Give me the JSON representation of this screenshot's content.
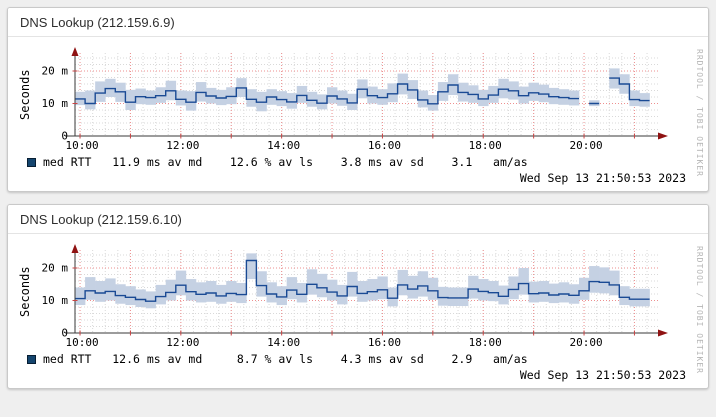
{
  "watermark": "RRDTOOL / TOBI OETIKER",
  "colors": {
    "page_bg": "#efefef",
    "median_line": "#1a4a94",
    "smoke_band": "#c5d1e3",
    "major_grid": "#ee8f8f",
    "minor_grid": "#d9d9d9",
    "arrow": "#8f1212",
    "legend_swatch": "#14456e"
  },
  "chart_data": [
    {
      "type": "line",
      "title": "DNS Lookup (212.159.6.9)",
      "ylabel": "Seconds",
      "ylim_ms": [
        0,
        25.5
      ],
      "x_range": "10:00 to ~21:30",
      "sample_step_hours": 0.2,
      "grid": "red dotted major (hourly, 10m/20m), gray dotted minor",
      "y_ticks": [
        {
          "label": "20 m",
          "ms": 20
        },
        {
          "label": "10 m",
          "ms": 10
        },
        {
          "label": "0",
          "ms": 0
        }
      ],
      "x_ticks": [
        {
          "label": "10:00",
          "t": 0.1
        },
        {
          "label": "12:00",
          "t": 2.1
        },
        {
          "label": "14:00",
          "t": 4.1
        },
        {
          "label": "16:00",
          "t": 6.1
        },
        {
          "label": "18:00",
          "t": 8.1
        },
        {
          "label": "20:00",
          "t": 10.1
        }
      ],
      "series": [
        {
          "name": "median RTT (ms)",
          "values": [
            11.4,
            10.0,
            13.2,
            14.6,
            13.6,
            10.4,
            12.1,
            11.8,
            12.4,
            13.9,
            11.3,
            10.4,
            13.4,
            12.3,
            11.7,
            12.2,
            14.8,
            11.3,
            10.4,
            12.0,
            11.2,
            10.5,
            12.5,
            11.0,
            10.1,
            12.3,
            11.4,
            10.2,
            14.4,
            12.4,
            11.8,
            13.0,
            16.0,
            14.2,
            11.1,
            9.9,
            13.6,
            15.7,
            13.4,
            12.8,
            11.4,
            12.6,
            14.4,
            13.9,
            12.4,
            13.3,
            12.9,
            12.1,
            11.8,
            11.5,
            null,
            10.0,
            null,
            17.8,
            16.0,
            11.2,
            10.9,
            null
          ]
        },
        {
          "name": "smoke low (ms)",
          "values": [
            9.5,
            8.2,
            10.5,
            12.0,
            10.5,
            8.0,
            9.8,
            9.6,
            10.2,
            11.0,
            9.4,
            7.8,
            10.6,
            10.0,
            9.5,
            9.8,
            12.0,
            9.0,
            7.6,
            9.6,
            9.2,
            8.4,
            10.2,
            9.0,
            8.2,
            10.0,
            9.3,
            8.0,
            11.6,
            10.0,
            9.6,
            10.4,
            12.8,
            11.4,
            8.8,
            7.8,
            10.8,
            12.6,
            10.6,
            10.2,
            9.2,
            10.2,
            11.6,
            11.2,
            10.0,
            10.8,
            10.4,
            9.8,
            9.6,
            9.4,
            null,
            9.2,
            null,
            14.6,
            13.0,
            9.2,
            9.0,
            null
          ]
        },
        {
          "name": "smoke high (ms)",
          "values": [
            13.6,
            14.0,
            16.8,
            17.6,
            16.4,
            14.2,
            14.6,
            14.0,
            15.0,
            17.0,
            14.0,
            13.8,
            16.6,
            14.8,
            14.2,
            15.0,
            17.8,
            14.4,
            13.6,
            14.4,
            13.8,
            13.2,
            15.4,
            13.6,
            12.8,
            15.0,
            14.0,
            13.0,
            17.4,
            15.2,
            14.4,
            16.2,
            19.2,
            17.2,
            14.0,
            12.6,
            16.6,
            19.0,
            16.4,
            15.6,
            14.2,
            15.4,
            17.6,
            16.8,
            15.2,
            16.4,
            15.8,
            14.8,
            14.4,
            14.0,
            null,
            11.0,
            null,
            20.8,
            19.0,
            14.0,
            13.2,
            null
          ]
        }
      ],
      "legend": "med RTT   11.9 ms av md    12.6 % av ls    3.8 ms av sd    3.1   am/as",
      "stats": {
        "avg_median_ms": 11.9,
        "avg_loss_pct": 12.6,
        "avg_sd_ms": 3.8,
        "am_as": 3.1
      },
      "timestamp": "Wed Sep 13 21:50:53 2023"
    },
    {
      "type": "line",
      "title": "DNS Lookup (212.159.6.10)",
      "ylabel": "Seconds",
      "ylim_ms": [
        0,
        25.5
      ],
      "x_range": "10:00 to ~21:30",
      "sample_step_hours": 0.2,
      "grid": "red dotted major (hourly, 10m/20m), gray dotted minor",
      "y_ticks": [
        {
          "label": "20 m",
          "ms": 20
        },
        {
          "label": "10 m",
          "ms": 10
        },
        {
          "label": "0",
          "ms": 0
        }
      ],
      "x_ticks": [
        {
          "label": "10:00",
          "t": 0.1
        },
        {
          "label": "12:00",
          "t": 2.1
        },
        {
          "label": "14:00",
          "t": 4.1
        },
        {
          "label": "16:00",
          "t": 6.1
        },
        {
          "label": "18:00",
          "t": 8.1
        },
        {
          "label": "20:00",
          "t": 10.1
        }
      ],
      "series": [
        {
          "name": "median RTT (ms)",
          "values": [
            10.6,
            13.0,
            12.3,
            12.8,
            11.5,
            11.0,
            10.3,
            9.8,
            11.2,
            12.5,
            14.7,
            12.7,
            11.9,
            12.3,
            11.4,
            12.2,
            11.8,
            22.3,
            14.6,
            12.0,
            11.1,
            13.2,
            11.9,
            15.0,
            13.9,
            12.6,
            11.4,
            14.3,
            12.2,
            12.7,
            13.3,
            10.7,
            14.8,
            13.5,
            14.5,
            13.0,
            10.9,
            10.8,
            10.8,
            13.5,
            12.8,
            12.4,
            11.3,
            13.4,
            15.2,
            12.1,
            12.3,
            11.7,
            12.0,
            11.6,
            13.0,
            15.8,
            15.6,
            14.8,
            11.0,
            10.4,
            10.4,
            null
          ]
        },
        {
          "name": "smoke low (ms)",
          "values": [
            8.6,
            10.2,
            9.6,
            10.0,
            9.0,
            8.6,
            8.0,
            7.6,
            8.8,
            10.0,
            11.6,
            10.0,
            9.4,
            9.6,
            9.0,
            9.6,
            9.2,
            16.6,
            11.2,
            9.4,
            8.6,
            10.4,
            9.4,
            11.8,
            11.0,
            10.0,
            8.8,
            11.2,
            9.6,
            10.0,
            10.4,
            8.2,
            11.6,
            10.6,
            11.2,
            10.2,
            8.4,
            8.3,
            8.3,
            10.6,
            10.0,
            9.8,
            8.8,
            10.4,
            11.8,
            9.4,
            9.6,
            9.2,
            9.4,
            9.0,
            10.2,
            12.4,
            12.2,
            11.6,
            8.6,
            8.2,
            8.2,
            null
          ]
        },
        {
          "name": "smoke high (ms)",
          "values": [
            14.0,
            17.2,
            16.0,
            16.8,
            15.0,
            14.4,
            13.4,
            12.8,
            14.8,
            16.4,
            19.2,
            16.6,
            15.6,
            16.0,
            14.8,
            16.0,
            15.4,
            24.5,
            19.0,
            15.6,
            14.4,
            17.2,
            15.4,
            19.6,
            18.2,
            16.4,
            14.8,
            18.8,
            16.0,
            16.6,
            17.4,
            14.0,
            19.4,
            17.6,
            19.0,
            17.0,
            14.2,
            14.0,
            14.0,
            17.6,
            16.6,
            16.0,
            14.6,
            17.4,
            20.0,
            15.8,
            16.0,
            15.2,
            15.6,
            15.0,
            17.0,
            20.6,
            20.2,
            19.2,
            14.4,
            13.6,
            13.6,
            null
          ]
        }
      ],
      "legend": "med RTT   12.6 ms av md     8.7 % av ls    4.3 ms av sd    2.9   am/as",
      "stats": {
        "avg_median_ms": 12.6,
        "avg_loss_pct": 8.7,
        "avg_sd_ms": 4.3,
        "am_as": 2.9
      },
      "timestamp": "Wed Sep 13 21:50:53 2023"
    }
  ]
}
